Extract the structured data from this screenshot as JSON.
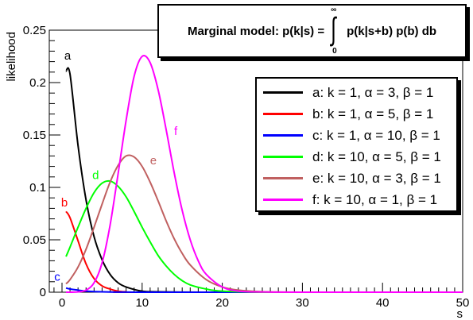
{
  "chart_data": {
    "type": "line",
    "title": "Marginal model:  p(k|s) = ",
    "formula": {
      "integrand": "p(k|s+b) p(b) db",
      "upper_limit": "∞",
      "lower_limit": "0"
    },
    "xlabel": "s",
    "ylabel": "likelihood",
    "xlim": [
      0,
      50
    ],
    "ylim": [
      0,
      0.25
    ],
    "x_ticks": [
      "0",
      "10",
      "20",
      "30",
      "40",
      "50"
    ],
    "y_ticks": [
      "0",
      "0.05",
      "0.1",
      "0.15",
      "0.2",
      "0.25"
    ],
    "grid": false,
    "legend_position": "right",
    "series": [
      {
        "name": "a: k = 1, α = 3, β = 1",
        "letter": "a",
        "k": 1,
        "alpha": 3,
        "beta": 1,
        "color": "#000000",
        "x": [
          0.5,
          1,
          2,
          3,
          4,
          5,
          6,
          7,
          8,
          10,
          12,
          15,
          20,
          50
        ],
        "y": [
          0.211,
          0.208,
          0.14,
          0.088,
          0.053,
          0.031,
          0.017,
          0.009,
          0.005,
          0.001,
          0.0004,
          0.0001,
          0,
          0
        ]
      },
      {
        "name": "b: k = 1, α = 5, β = 1",
        "letter": "b",
        "k": 1,
        "alpha": 5,
        "beta": 1,
        "color": "#ff0000",
        "x": [
          0.5,
          1,
          2,
          3,
          4,
          5,
          6,
          7,
          8,
          10,
          50
        ],
        "y": [
          0.077,
          0.071,
          0.049,
          0.027,
          0.013,
          0.006,
          0.003,
          0.001,
          0.0004,
          0,
          0
        ]
      },
      {
        "name": "c: k = 1, α = 10, β = 1",
        "letter": "c",
        "k": 1,
        "alpha": 10,
        "beta": 1,
        "color": "#0000ff",
        "x": [
          0.5,
          1,
          2,
          3,
          4,
          6,
          8,
          10,
          20,
          50
        ],
        "y": [
          0.004,
          0.003,
          0.002,
          0.001,
          0.0006,
          0.0002,
          0.0001,
          0,
          0,
          0
        ]
      },
      {
        "name": "d: k = 10, α = 5, β = 1",
        "letter": "d",
        "k": 10,
        "alpha": 5,
        "beta": 1,
        "color": "#00ff00",
        "x": [
          0.5,
          1,
          2,
          3,
          4,
          5,
          6,
          7,
          8,
          9,
          10,
          11,
          12,
          13,
          14,
          15,
          16,
          18,
          20,
          25,
          30,
          50
        ],
        "y": [
          0.034,
          0.043,
          0.062,
          0.08,
          0.095,
          0.104,
          0.106,
          0.101,
          0.091,
          0.077,
          0.062,
          0.048,
          0.035,
          0.025,
          0.017,
          0.011,
          0.007,
          0.003,
          0.001,
          0,
          0,
          0
        ]
      },
      {
        "name": "e: k = 10, α = 3, β = 1",
        "letter": "e",
        "k": 10,
        "alpha": 3,
        "beta": 1,
        "color": "#c06060",
        "x": [
          0.5,
          1,
          2,
          3,
          4,
          5,
          6,
          7,
          8,
          9,
          10,
          11,
          12,
          13,
          14,
          15,
          16,
          18,
          20,
          22,
          25,
          30,
          50
        ],
        "y": [
          0.008,
          0.012,
          0.024,
          0.041,
          0.062,
          0.084,
          0.105,
          0.121,
          0.13,
          0.129,
          0.12,
          0.105,
          0.087,
          0.068,
          0.051,
          0.037,
          0.026,
          0.012,
          0.005,
          0.002,
          0.0005,
          0,
          0
        ]
      },
      {
        "name": "f: k = 10, α = 1, β = 1",
        "letter": "f",
        "k": 10,
        "alpha": 1,
        "beta": 1,
        "color": "#ff00ff",
        "x": [
          0.5,
          2,
          3,
          4,
          5,
          6,
          7,
          8,
          9,
          10,
          11,
          12,
          13,
          14,
          15,
          16,
          17,
          18,
          20,
          22,
          25,
          30,
          50
        ],
        "y": [
          0,
          0.0003,
          0.002,
          0.009,
          0.028,
          0.064,
          0.113,
          0.164,
          0.206,
          0.225,
          0.219,
          0.193,
          0.155,
          0.114,
          0.078,
          0.05,
          0.03,
          0.017,
          0.005,
          0.001,
          0.0002,
          0,
          0
        ]
      }
    ],
    "annotations": [
      {
        "text": "a",
        "series": "a",
        "x": 0.7,
        "y": 0.222
      },
      {
        "text": "b",
        "series": "b",
        "x": 0.3,
        "y": 0.082
      },
      {
        "text": "c",
        "series": "c",
        "x": -0.6,
        "y": 0.011
      },
      {
        "text": "d",
        "series": "d",
        "x": 4.2,
        "y": 0.108
      },
      {
        "text": "e",
        "series": "e",
        "x": 11.4,
        "y": 0.122
      },
      {
        "text": "f",
        "series": "f",
        "x": 14.2,
        "y": 0.15
      }
    ]
  }
}
